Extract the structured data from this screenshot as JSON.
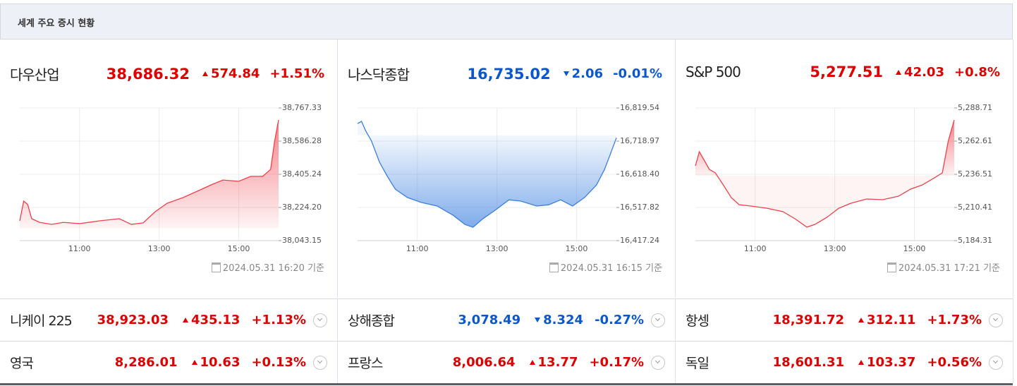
{
  "header": {
    "title": "세계 주요 증시 현황"
  },
  "colors": {
    "up": "#e00000",
    "down": "#0a58d0"
  },
  "chart_data": [
    {
      "type": "line",
      "title": "다우산업",
      "price": "38,686.32",
      "change": "574.84",
      "change_pct": "+1.51%",
      "direction": "up",
      "color": "#f0404a",
      "timestamp": "2024.05.31 16:20 기준",
      "baseline": 38111.48,
      "x": [
        9.5,
        9.6,
        9.7,
        9.8,
        10.0,
        10.3,
        10.6,
        11.0,
        11.5,
        12.0,
        12.3,
        12.6,
        12.9,
        13.2,
        13.6,
        14.0,
        14.3,
        14.6,
        15.0,
        15.3,
        15.6,
        15.8,
        15.9,
        16.0
      ],
      "values": [
        38151,
        38259,
        38240,
        38163,
        38143,
        38132,
        38143,
        38136,
        38151,
        38163,
        38132,
        38140,
        38201,
        38247,
        38278,
        38317,
        38347,
        38374,
        38367,
        38394,
        38394,
        38432,
        38586,
        38702
      ],
      "xlim": [
        9.5,
        16.0
      ],
      "ylim": [
        38043.15,
        38767.33
      ],
      "xticks": [
        {
          "value": 11,
          "label": "11:00"
        },
        {
          "value": 13,
          "label": "13:00"
        },
        {
          "value": 15,
          "label": "15:00"
        }
      ],
      "yticks": [
        {
          "value": 38043.15,
          "label": "38,043.15"
        },
        {
          "value": 38224.2,
          "label": "38,224.20"
        },
        {
          "value": 38405.24,
          "label": "38,405.24"
        },
        {
          "value": 38586.28,
          "label": "38,586.28"
        },
        {
          "value": 38767.33,
          "label": "38,767.33"
        }
      ]
    },
    {
      "type": "line",
      "title": "나스닥종합",
      "price": "16,735.02",
      "change": "2.06",
      "change_pct": "-0.01%",
      "direction": "down",
      "color": "#3a7fe0",
      "timestamp": "2024.05.31 16:15 기준",
      "baseline": 16737.08,
      "x": [
        9.5,
        9.6,
        9.7,
        9.85,
        10.05,
        10.25,
        10.45,
        10.75,
        11.1,
        11.5,
        11.9,
        12.2,
        12.4,
        12.65,
        12.95,
        13.3,
        13.6,
        14.0,
        14.3,
        14.6,
        14.9,
        15.2,
        15.5,
        15.7,
        15.85,
        16.0
      ],
      "values": [
        16772,
        16779,
        16751,
        16719,
        16655,
        16612,
        16573,
        16548,
        16533,
        16522,
        16494,
        16466,
        16458,
        16484,
        16509,
        16541,
        16537,
        16522,
        16526,
        16541,
        16522,
        16548,
        16586,
        16633,
        16680,
        16729
      ],
      "xlim": [
        9.5,
        16.0
      ],
      "ylim": [
        16417.24,
        16819.54
      ],
      "xticks": [
        {
          "value": 11,
          "label": "11:00"
        },
        {
          "value": 13,
          "label": "13:00"
        },
        {
          "value": 15,
          "label": "15:00"
        }
      ],
      "yticks": [
        {
          "value": 16417.24,
          "label": "16,417.24"
        },
        {
          "value": 16517.82,
          "label": "16,517.82"
        },
        {
          "value": 16618.4,
          "label": "16,618.40"
        },
        {
          "value": 16718.97,
          "label": "16,718.97"
        },
        {
          "value": 16819.54,
          "label": "16,819.54"
        }
      ]
    },
    {
      "type": "line",
      "title": "S&P 500",
      "price": "5,277.51",
      "change": "42.03",
      "change_pct": "+0.8%",
      "direction": "up",
      "color": "#f0404a",
      "timestamp": "2024.05.31 17:21 기준",
      "baseline": 5235.48,
      "x": [
        9.5,
        9.6,
        9.7,
        9.85,
        10.0,
        10.2,
        10.4,
        10.6,
        10.9,
        11.3,
        11.7,
        12.0,
        12.3,
        12.5,
        12.8,
        13.1,
        13.4,
        13.8,
        14.2,
        14.6,
        14.9,
        15.2,
        15.5,
        15.7,
        15.85,
        16.0
      ],
      "values": [
        5243.2,
        5254.3,
        5248.7,
        5240.4,
        5237.6,
        5228.2,
        5218.2,
        5212.6,
        5211.5,
        5209.8,
        5207.1,
        5201.5,
        5194.9,
        5197.1,
        5202.6,
        5209.8,
        5213.7,
        5217.1,
        5216.5,
        5219.3,
        5224.8,
        5228.2,
        5233.7,
        5237.6,
        5262.6,
        5279.3
      ],
      "xlim": [
        9.5,
        16.0
      ],
      "ylim": [
        5184.31,
        5288.71
      ],
      "xticks": [
        {
          "value": 11,
          "label": "11:00"
        },
        {
          "value": 13,
          "label": "13:00"
        },
        {
          "value": 15,
          "label": "15:00"
        }
      ],
      "yticks": [
        {
          "value": 5184.31,
          "label": "5,184.31"
        },
        {
          "value": 5210.41,
          "label": "5,210.41"
        },
        {
          "value": 5236.51,
          "label": "5,236.51"
        },
        {
          "value": 5262.61,
          "label": "5,262.61"
        },
        {
          "value": 5288.71,
          "label": "5,288.71"
        }
      ]
    }
  ],
  "markets": [
    {
      "name": "니케이 225",
      "price": "38,923.03",
      "change": "435.13",
      "change_pct": "+1.13%",
      "direction": "up"
    },
    {
      "name": "상해종합",
      "price": "3,078.49",
      "change": "8.324",
      "change_pct": "-0.27%",
      "direction": "down"
    },
    {
      "name": "항셍",
      "price": "18,391.72",
      "change": "312.11",
      "change_pct": "+1.73%",
      "direction": "up"
    },
    {
      "name": "영국",
      "price": "8,286.01",
      "change": "10.63",
      "change_pct": "+0.13%",
      "direction": "up"
    },
    {
      "name": "프랑스",
      "price": "8,006.64",
      "change": "13.77",
      "change_pct": "+0.17%",
      "direction": "up"
    },
    {
      "name": "독일",
      "price": "18,601.31",
      "change": "103.37",
      "change_pct": "+0.56%",
      "direction": "up"
    }
  ]
}
